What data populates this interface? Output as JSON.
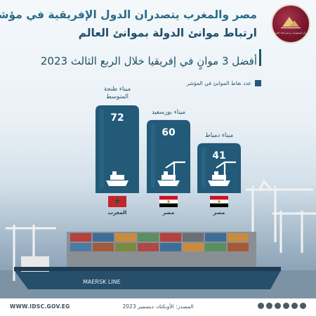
{
  "header": {
    "title_line1": "مصر والمغرب يتصدران الدول الإفريقية في مؤشر",
    "title_line2": "ارتباط موانئ الدولة بموانئ العالم",
    "logo_text": "مركز المعلومات ودعم اتخاذ القرار"
  },
  "chart_data": {
    "type": "bar",
    "title": "أفضل 3 موانٍ في إفريقيا خلال الربع الثالث 2023",
    "legend": [
      {
        "name": "عدد نقاط الموانئ في المؤشر",
        "color": "#225a78"
      }
    ],
    "categories": [
      "ميناء طنجة المتوسط",
      "ميناء بورسعيد",
      "ميناء دمياط"
    ],
    "countries": [
      "المغرب",
      "مصر",
      "مصر"
    ],
    "series": [
      {
        "name": "عدد نقاط الموانئ في المؤشر",
        "values": [
          72,
          60,
          41
        ]
      }
    ],
    "value_labels": [
      "72",
      "60",
      "41"
    ],
    "ylim": [
      0,
      80
    ],
    "grid": false,
    "legend_position": "top-right"
  },
  "colors": {
    "bar": "#225a78",
    "bar_top": "#2f6b8a",
    "title_accent": "#2a6b86",
    "logo": "#7a1830"
  },
  "icons": [
    "container-ship-icon",
    "port-crane-icon",
    "morocco-flag-icon",
    "egypt-flag-icon"
  ],
  "footer": {
    "website": "WWW.IDSC.GOV.EG",
    "source": "المصدر: الأونكتاد، ديسمبر 2023"
  }
}
